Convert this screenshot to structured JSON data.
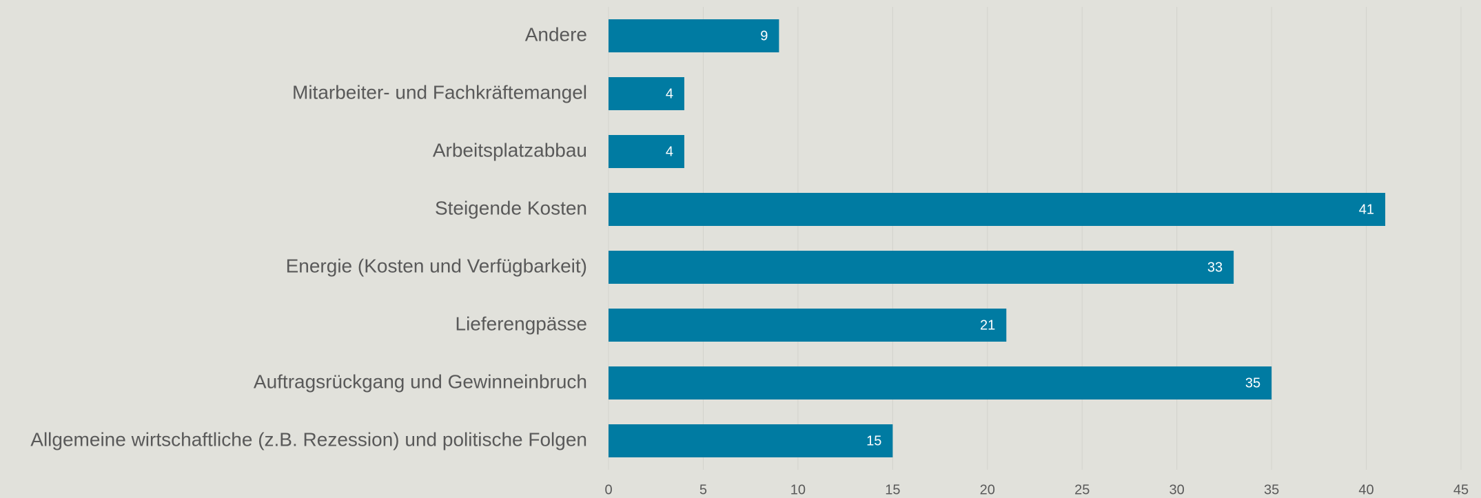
{
  "chart_data": {
    "type": "barh",
    "categories": [
      "Andere",
      "Mitarbeiter- und Fachkräftemangel",
      "Arbeitsplatzabbau",
      "Steigende Kosten",
      "Energie (Kosten und Verfügbarkeit)",
      "Lieferengpässe",
      "Auftragsrückgang und Gewinneinbruch",
      "Allgemeine wirtschaftliche (z.B. Rezession) und politische Folgen"
    ],
    "values": [
      9,
      4,
      4,
      41,
      33,
      21,
      35,
      15
    ],
    "color": "#007ba2",
    "xlim": [
      0,
      45
    ],
    "xticks": [
      0,
      5,
      10,
      15,
      20,
      25,
      30,
      35,
      40,
      45
    ],
    "grid": true
  }
}
